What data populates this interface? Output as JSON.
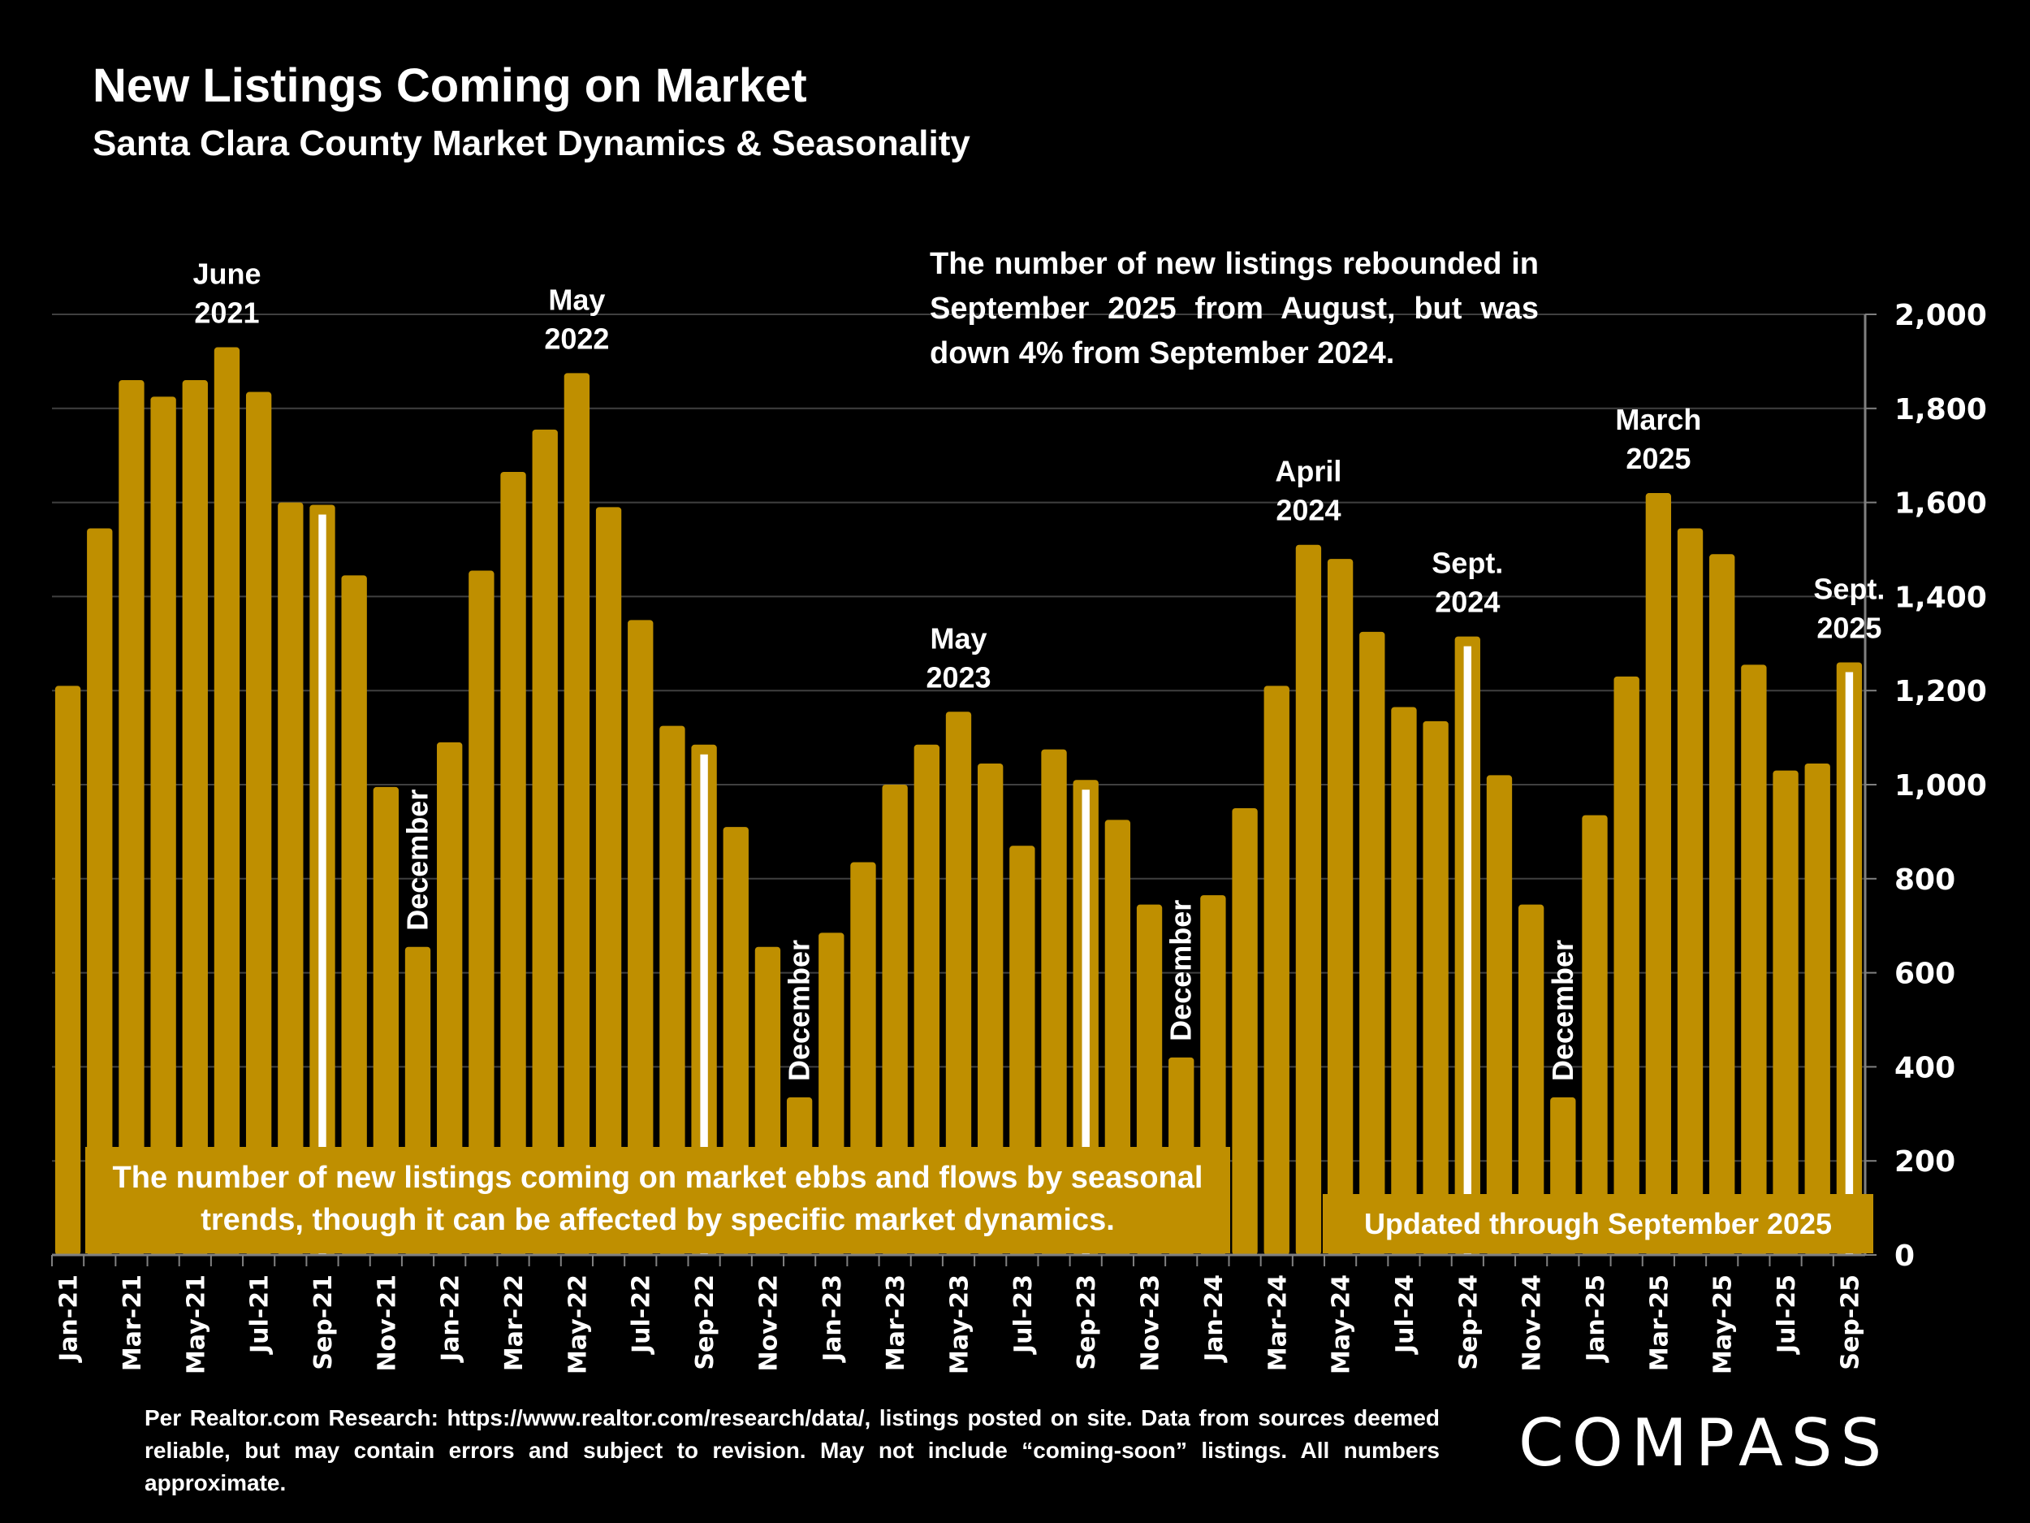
{
  "header": {
    "title": "New Listings Coming on Market",
    "subtitle": "Santa Clara County Market Dynamics & Seasonality"
  },
  "annotations": {
    "top_note": "The number of new listings rebounded in September 2025 from August, but was down 4% from September 2024.",
    "box_left": "The number of new listings coming on market ebbs and flows by seasonal trends, though it can be affected by specific market dynamics.",
    "box_right": "Updated through September 2025",
    "peak_labels": [
      {
        "month_index": 5,
        "lines": [
          "June",
          "2021"
        ]
      },
      {
        "month_index": 16,
        "lines": [
          "May",
          "2022"
        ]
      },
      {
        "month_index": 28,
        "lines": [
          "May",
          "2023"
        ]
      },
      {
        "month_index": 39,
        "lines": [
          "April",
          "2024"
        ]
      },
      {
        "month_index": 44,
        "lines": [
          "Sept.",
          "2024"
        ]
      },
      {
        "month_index": 50,
        "lines": [
          "March",
          "2025"
        ]
      },
      {
        "month_index": 56,
        "lines": [
          "Sept.",
          "2025"
        ]
      }
    ],
    "december_labels": [
      {
        "month_index": 11,
        "text": "December"
      },
      {
        "month_index": 23,
        "text": "December"
      },
      {
        "month_index": 35,
        "text": "December"
      },
      {
        "month_index": 47,
        "text": "December"
      }
    ]
  },
  "footer": {
    "source_note": "Per Realtor.com Research:  https://www.realtor.com/research/data/, listings posted on site. Data from sources deemed reliable, but may contain errors and subject to revision. May not include “coming-soon” listings. All numbers approximate.",
    "logo": "COMPASS"
  },
  "colors": {
    "bar": "#BF8F00",
    "highlight": "#FFFFFF",
    "background": "#000000",
    "gridline": "#404040"
  },
  "chart_data": {
    "type": "bar",
    "title": "New Listings Coming on Market",
    "subtitle": "Santa Clara County Market Dynamics & Seasonality",
    "xlabel": "",
    "ylabel": "",
    "ylim": [
      0,
      2000
    ],
    "yticks": [
      0,
      200,
      400,
      600,
      800,
      1000,
      1200,
      1400,
      1600,
      1800,
      2000
    ],
    "ytick_labels": [
      "0",
      "200",
      "400",
      "600",
      "800",
      "1,000",
      "1,200",
      "1,400",
      "1,600",
      "1,800",
      "2,000"
    ],
    "y_axis_side": "right",
    "grid": true,
    "categories": [
      "Jan-21",
      "Feb-21",
      "Mar-21",
      "Apr-21",
      "May-21",
      "Jun-21",
      "Jul-21",
      "Aug-21",
      "Sep-21",
      "Oct-21",
      "Nov-21",
      "Dec-21",
      "Jan-22",
      "Feb-22",
      "Mar-22",
      "Apr-22",
      "May-22",
      "Jun-22",
      "Jul-22",
      "Aug-22",
      "Sep-22",
      "Oct-22",
      "Nov-22",
      "Dec-22",
      "Jan-23",
      "Feb-23",
      "Mar-23",
      "Apr-23",
      "May-23",
      "Jun-23",
      "Jul-23",
      "Aug-23",
      "Sep-23",
      "Oct-23",
      "Nov-23",
      "Dec-23",
      "Jan-24",
      "Feb-24",
      "Mar-24",
      "Apr-24",
      "May-24",
      "Jun-24",
      "Jul-24",
      "Aug-24",
      "Sep-24",
      "Oct-24",
      "Nov-24",
      "Dec-24",
      "Jan-25",
      "Feb-25",
      "Mar-25",
      "Apr-25",
      "May-25",
      "Jun-25",
      "Jul-25",
      "Aug-25",
      "Sep-25"
    ],
    "x_tick_labels_shown": "every other month (Jan, Mar, May, Jul, Sep, Nov)",
    "values": [
      1210,
      1545,
      1860,
      1825,
      1860,
      1930,
      1835,
      1600,
      1595,
      1445,
      995,
      655,
      1090,
      1455,
      1665,
      1755,
      1875,
      1590,
      1350,
      1125,
      1085,
      910,
      655,
      335,
      685,
      835,
      1000,
      1085,
      1155,
      1045,
      870,
      1075,
      1010,
      925,
      745,
      420,
      765,
      950,
      1210,
      1510,
      1480,
      1325,
      1165,
      1135,
      1315,
      1020,
      745,
      335,
      935,
      1230,
      1620,
      1545,
      1490,
      1255,
      1030,
      1045,
      1260
    ],
    "highlighted_months": [
      "Sep-21",
      "Sep-22",
      "Sep-23",
      "Sep-24",
      "Sep-25"
    ],
    "highlight_style": "white inner stripe"
  }
}
